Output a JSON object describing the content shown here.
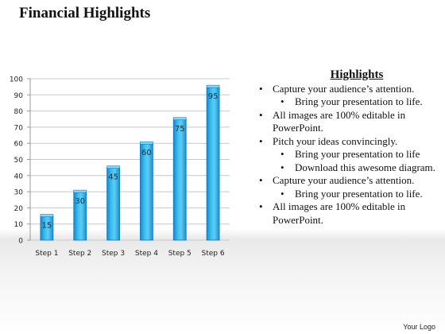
{
  "slide": {
    "title": "Financial Highlights",
    "footer": "Your Logo"
  },
  "highlights": {
    "heading": "Highlights",
    "items": [
      {
        "level": 1,
        "text": "Capture your audience’s attention."
      },
      {
        "level": 2,
        "text": "Bring your presentation to life."
      },
      {
        "level": 1,
        "text": "All images are 100% editable in PowerPoint."
      },
      {
        "level": 1,
        "text": "Pitch your ideas convincingly."
      },
      {
        "level": 2,
        "text": "Bring your presentation to life"
      },
      {
        "level": 2,
        "text": "Download this awesome diagram."
      },
      {
        "level": 1,
        "text": "Capture your audience’s attention."
      },
      {
        "level": 2,
        "text": "Bring your presentation to life."
      },
      {
        "level": 1,
        "text": "All images are 100% editable in PowerPoint."
      }
    ]
  },
  "chart_data": {
    "type": "bar",
    "categories": [
      "Step 1",
      "Step 2",
      "Step 3",
      "Step 4",
      "Step 5",
      "Step 6"
    ],
    "values": [
      15,
      30,
      45,
      60,
      75,
      95
    ],
    "data_labels": [
      "15",
      "30",
      "45",
      "60",
      "75",
      "95"
    ],
    "ylim": [
      0,
      100
    ],
    "yticks": [
      0,
      10,
      20,
      30,
      40,
      50,
      60,
      70,
      80,
      90,
      100
    ],
    "grid": true,
    "bar_color": "#29a8e0",
    "bar_edge_color": "#1779b8"
  }
}
